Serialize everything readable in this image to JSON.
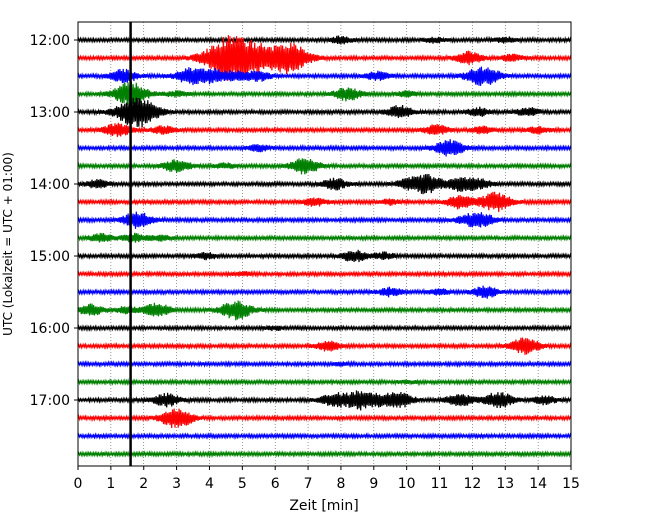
{
  "chart_data": {
    "type": "line",
    "title": "",
    "xlabel": "Zeit  [min]",
    "ylabel": "UTC (Lokalzeit = UTC + 01:00)",
    "xlim": [
      0,
      15
    ],
    "x_ticks": [
      "0",
      "1",
      "2",
      "3",
      "4",
      "5",
      "6",
      "7",
      "8",
      "9",
      "10",
      "11",
      "12",
      "13",
      "14",
      "15"
    ],
    "y_ticks": [
      {
        "label": "12:00",
        "row": 0
      },
      {
        "label": "13:00",
        "row": 4
      },
      {
        "label": "14:00",
        "row": 8
      },
      {
        "label": "15:00",
        "row": 12
      },
      {
        "label": "16:00",
        "row": 16
      },
      {
        "label": "17:00",
        "row": 20
      }
    ],
    "grid": "vertical-dotted",
    "trace_colors": [
      "#000000",
      "#ff0000",
      "#0000ff",
      "#008000"
    ],
    "row_interval_minutes": 15,
    "rows": [
      {
        "start": "12:00",
        "events": [
          {
            "t": 8.0,
            "a": 0.4
          },
          {
            "t": 10.8,
            "a": 0.3
          },
          {
            "t": 13.0,
            "a": 0.3
          }
        ]
      },
      {
        "start": "12:15",
        "events": [
          {
            "t": 4.7,
            "a": 3.0
          },
          {
            "t": 6.4,
            "a": 2.0
          },
          {
            "t": 5.5,
            "a": 0.8
          },
          {
            "t": 11.9,
            "a": 0.8
          },
          {
            "t": 13.2,
            "a": 0.4
          }
        ]
      },
      {
        "start": "12:30",
        "events": [
          {
            "t": 1.4,
            "a": 0.8
          },
          {
            "t": 3.4,
            "a": 1.0
          },
          {
            "t": 4.1,
            "a": 0.8
          },
          {
            "t": 4.8,
            "a": 0.6
          },
          {
            "t": 5.5,
            "a": 0.6
          },
          {
            "t": 9.1,
            "a": 0.5
          },
          {
            "t": 12.2,
            "a": 1.0
          },
          {
            "t": 12.6,
            "a": 0.5
          }
        ]
      },
      {
        "start": "12:45",
        "events": [
          {
            "t": 1.6,
            "a": 1.5
          },
          {
            "t": 8.2,
            "a": 0.8
          },
          {
            "t": 3.0,
            "a": 0.3
          },
          {
            "t": 10.0,
            "a": 0.3
          }
        ]
      },
      {
        "start": "13:00",
        "events": [
          {
            "t": 1.8,
            "a": 2.0
          },
          {
            "t": 9.8,
            "a": 0.8
          },
          {
            "t": 12.2,
            "a": 0.5
          },
          {
            "t": 13.7,
            "a": 0.5
          }
        ]
      },
      {
        "start": "13:15",
        "events": [
          {
            "t": 1.2,
            "a": 0.8
          },
          {
            "t": 2.6,
            "a": 0.5
          },
          {
            "t": 10.9,
            "a": 0.6
          },
          {
            "t": 12.3,
            "a": 0.4
          },
          {
            "t": 14.0,
            "a": 0.4
          }
        ]
      },
      {
        "start": "13:30",
        "events": [
          {
            "t": 5.5,
            "a": 0.4
          },
          {
            "t": 11.3,
            "a": 1.0
          }
        ]
      },
      {
        "start": "13:45",
        "events": [
          {
            "t": 3.0,
            "a": 0.8
          },
          {
            "t": 6.9,
            "a": 1.0
          },
          {
            "t": 4.5,
            "a": 0.3
          }
        ]
      },
      {
        "start": "14:00",
        "events": [
          {
            "t": 0.6,
            "a": 0.5
          },
          {
            "t": 7.8,
            "a": 0.7
          },
          {
            "t": 10.0,
            "a": 0.5
          },
          {
            "t": 10.6,
            "a": 1.2
          },
          {
            "t": 11.6,
            "a": 0.8
          },
          {
            "t": 12.2,
            "a": 0.6
          }
        ]
      },
      {
        "start": "14:15",
        "events": [
          {
            "t": 7.2,
            "a": 0.5
          },
          {
            "t": 11.6,
            "a": 0.8
          },
          {
            "t": 12.7,
            "a": 1.2
          },
          {
            "t": 9.5,
            "a": 0.3
          }
        ]
      },
      {
        "start": "14:30",
        "events": [
          {
            "t": 1.8,
            "a": 1.0
          },
          {
            "t": 12.3,
            "a": 0.8
          },
          {
            "t": 11.8,
            "a": 0.5
          }
        ]
      },
      {
        "start": "14:45",
        "events": [
          {
            "t": 0.7,
            "a": 0.5
          },
          {
            "t": 1.7,
            "a": 0.5
          },
          {
            "t": 2.5,
            "a": 0.3
          }
        ]
      },
      {
        "start": "15:00",
        "events": [
          {
            "t": 3.9,
            "a": 0.4
          },
          {
            "t": 8.4,
            "a": 0.7
          },
          {
            "t": 9.3,
            "a": 0.4
          }
        ]
      },
      {
        "start": "15:15",
        "events": [
          {
            "t": 5.0,
            "a": 0.2
          }
        ]
      },
      {
        "start": "15:30",
        "events": [
          {
            "t": 9.5,
            "a": 0.5
          },
          {
            "t": 12.4,
            "a": 0.7
          },
          {
            "t": 11.0,
            "a": 0.3
          }
        ]
      },
      {
        "start": "15:45",
        "events": [
          {
            "t": 0.4,
            "a": 0.7
          },
          {
            "t": 2.4,
            "a": 0.8
          },
          {
            "t": 4.8,
            "a": 1.2
          },
          {
            "t": 1.5,
            "a": 0.4
          }
        ]
      },
      {
        "start": "16:00",
        "events": [
          {
            "t": 6.0,
            "a": 0.2
          }
        ]
      },
      {
        "start": "16:15",
        "events": [
          {
            "t": 7.6,
            "a": 0.6
          },
          {
            "t": 13.6,
            "a": 1.0
          }
        ]
      },
      {
        "start": "16:30",
        "events": [
          {
            "t": 8.0,
            "a": 0.15
          }
        ]
      },
      {
        "start": "16:45",
        "events": [
          {
            "t": 10.0,
            "a": 0.15
          }
        ]
      },
      {
        "start": "17:00",
        "events": [
          {
            "t": 2.7,
            "a": 0.8
          },
          {
            "t": 7.8,
            "a": 0.8
          },
          {
            "t": 8.6,
            "a": 1.2
          },
          {
            "t": 9.8,
            "a": 0.9
          },
          {
            "t": 11.6,
            "a": 0.8
          },
          {
            "t": 12.8,
            "a": 1.0
          },
          {
            "t": 14.2,
            "a": 0.5
          },
          {
            "t": 9.2,
            "a": 0.5
          }
        ]
      },
      {
        "start": "17:15",
        "events": [
          {
            "t": 3.0,
            "a": 1.3
          }
        ]
      },
      {
        "start": "17:30",
        "events": []
      },
      {
        "start": "17:45",
        "events": []
      }
    ],
    "vertical_marker_minute": 1.6
  }
}
